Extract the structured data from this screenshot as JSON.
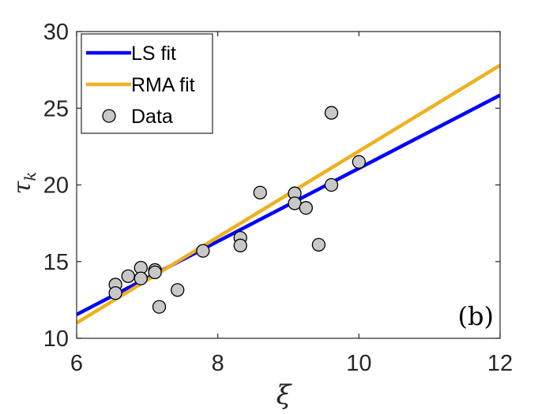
{
  "chart_data": {
    "type": "scatter",
    "xlabel": "ξ",
    "ylabel": "τ",
    "ylabel_sub": "k",
    "xlim": [
      6,
      12
    ],
    "ylim": [
      10,
      30
    ],
    "xticks": [
      "6",
      "8",
      "10",
      "12"
    ],
    "yticks": [
      "10",
      "15",
      "20",
      "25",
      "30"
    ],
    "panel_label": "(b)",
    "grid": false,
    "legend_position": "top-left",
    "series": [
      {
        "name": "LS fit",
        "kind": "line",
        "color": "#0000ff",
        "x": [
          6,
          12
        ],
        "y": [
          11.55,
          25.85
        ]
      },
      {
        "name": "RMA fit",
        "kind": "line",
        "color": "#edb120",
        "x": [
          6,
          12
        ],
        "y": [
          11.0,
          27.8
        ]
      },
      {
        "name": "Data",
        "kind": "points",
        "color": "#c8c8c8",
        "points": [
          [
            6.55,
            13.5
          ],
          [
            6.55,
            12.95
          ],
          [
            6.73,
            14.05
          ],
          [
            6.91,
            14.6
          ],
          [
            6.91,
            13.9
          ],
          [
            7.11,
            14.45
          ],
          [
            7.11,
            14.3
          ],
          [
            7.17,
            12.05
          ],
          [
            7.43,
            13.15
          ],
          [
            7.79,
            15.7
          ],
          [
            8.32,
            16.55
          ],
          [
            8.32,
            16.05
          ],
          [
            8.6,
            19.5
          ],
          [
            9.09,
            19.45
          ],
          [
            9.09,
            18.8
          ],
          [
            9.25,
            18.5
          ],
          [
            9.43,
            16.1
          ],
          [
            9.61,
            24.7
          ],
          [
            9.61,
            20.0
          ],
          [
            10.0,
            21.5
          ]
        ]
      }
    ]
  }
}
